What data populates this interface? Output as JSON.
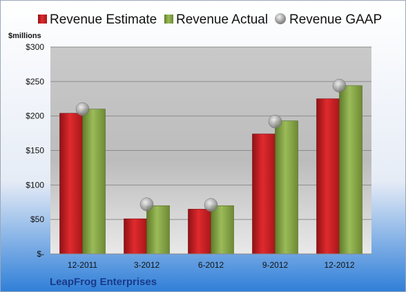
{
  "chart_data": {
    "type": "bar",
    "unit_label": "$millions",
    "footer": "LeapFrog Enterprises",
    "categories": [
      "12-2011",
      "3-2012",
      "6-2012",
      "9-2012",
      "12-2012"
    ],
    "y_ticks": [
      "$-",
      "$50",
      "$100",
      "$150",
      "$200",
      "$250",
      "$300"
    ],
    "ylim": [
      0,
      300
    ],
    "grid": true,
    "legend_position": "top",
    "series": [
      {
        "name": "Revenue Estimate",
        "kind": "bar",
        "color": "#cc1f24",
        "values": [
          204,
          51,
          65,
          174,
          225
        ]
      },
      {
        "name": "Revenue Actual",
        "kind": "bar",
        "color": "#7f9f3f",
        "values": [
          210,
          70,
          70,
          193,
          244
        ]
      },
      {
        "name": "Revenue GAAP",
        "kind": "marker",
        "color": "#b0b0b0",
        "values": [
          210,
          72,
          71,
          192,
          244
        ]
      }
    ]
  }
}
